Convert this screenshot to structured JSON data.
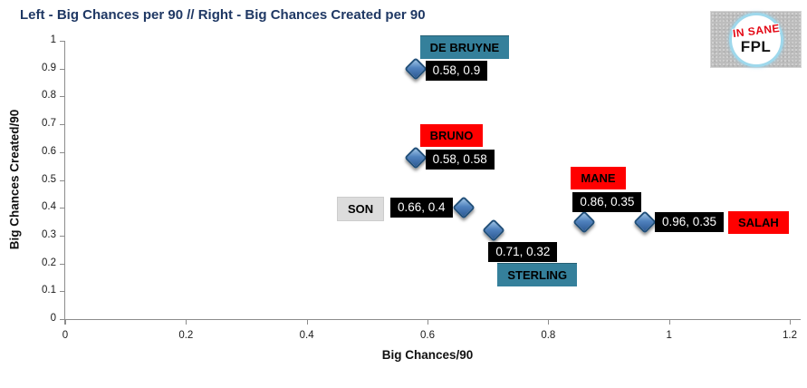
{
  "logo": {
    "line1": "IN SANE",
    "line2": "FPL"
  },
  "colors": {
    "title": "#1F3864",
    "marker_fill": "#4f81bd",
    "marker_border": "#1f4e79",
    "value_box_bg": "#000000",
    "value_box_text": "#FFFFFF",
    "teal": "#35809B",
    "red": "#FF0000",
    "gray": "#DCDCDC",
    "axis": "#8c8c8c"
  },
  "chart_data": {
    "type": "scatter",
    "title": "Left - Big Chances per 90 // Right - Big Chances Created per 90",
    "xlabel": "Big Chances/90",
    "ylabel": "Big Chances Created/90",
    "xlim": [
      0,
      1.2
    ],
    "ylim": [
      0,
      1
    ],
    "grid": "off",
    "legend": "none",
    "x_ticks": [
      0,
      0.2,
      0.4,
      0.6,
      0.8,
      1,
      1.2
    ],
    "x_tick_labels": [
      "0",
      "0.2",
      "0.4",
      "0.6",
      "0.8",
      "1",
      "1.2"
    ],
    "y_ticks": [
      0,
      0.1,
      0.2,
      0.3,
      0.4,
      0.5,
      0.6,
      0.7,
      0.8,
      0.9,
      1
    ],
    "y_tick_labels": [
      "0",
      "0.1",
      "0.2",
      "0.3",
      "0.4",
      "0.5",
      "0.6",
      "0.7",
      "0.8",
      "0.9",
      "1"
    ],
    "points": [
      {
        "name": "DE BRUYNE",
        "x": 0.58,
        "y": 0.9,
        "label": "0.58, 0.9",
        "name_box_color": "teal",
        "placement": "right_above"
      },
      {
        "name": "BRUNO",
        "x": 0.58,
        "y": 0.58,
        "label": "0.58, 0.58",
        "name_box_color": "red",
        "placement": "right_above"
      },
      {
        "name": "SON",
        "x": 0.66,
        "y": 0.4,
        "label": "0.66, 0.4",
        "name_box_color": "gray",
        "placement": "left_row"
      },
      {
        "name": "STERLING",
        "x": 0.71,
        "y": 0.32,
        "label": "0.71, 0.32",
        "name_box_color": "teal",
        "placement": "below"
      },
      {
        "name": "MANE",
        "x": 0.86,
        "y": 0.35,
        "label": "0.86, 0.35",
        "name_box_color": "red",
        "placement": "above"
      },
      {
        "name": "SALAH",
        "x": 0.96,
        "y": 0.35,
        "label": "0.96, 0.35",
        "name_box_color": "red",
        "placement": "right_row"
      }
    ]
  }
}
